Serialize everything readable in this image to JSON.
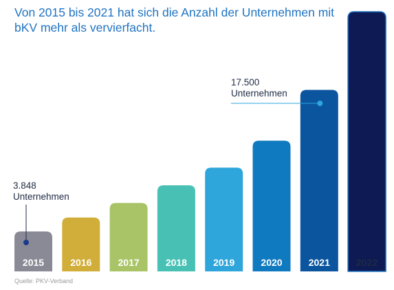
{
  "title": "Von 2015 bis 2021 hat sich die Anzahl der Unternehmen mit bKV mehr als vervierfacht.",
  "source": "Quelle: PKV-Verband",
  "annotations": {
    "first": {
      "value": "3.848",
      "label": "Unternehmen"
    },
    "last": {
      "value": "17.500",
      "label": "Unternehmen"
    }
  },
  "colors": {
    "title": "#1f73c2",
    "bars": [
      "#8a8a96",
      "#d1ad3a",
      "#a8c466",
      "#48c1b4",
      "#2ea5db",
      "#0f7ac0",
      "#0b559f",
      "#0d1a54",
      "#ffffff"
    ],
    "outline_2022": "#1f73c2",
    "marker": "#2ea5db"
  },
  "chart_data": {
    "type": "bar",
    "categories": [
      "2015",
      "2016",
      "2017",
      "2018",
      "2019",
      "2020",
      "2021",
      "2022"
    ],
    "values": [
      3848,
      5200,
      6600,
      8300,
      10000,
      12600,
      17500,
      null
    ],
    "ylim": [
      0,
      20000
    ],
    "grid": false,
    "legend": "none",
    "labeled_values": {
      "2015": "3.848",
      "2021": "17.500"
    },
    "note": "2022 shown as empty outlined bar"
  }
}
